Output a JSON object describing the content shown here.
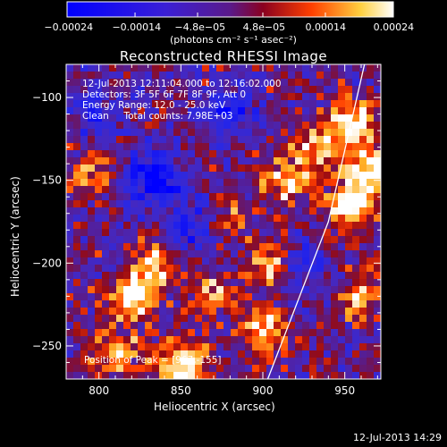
{
  "chart_data": {
    "type": "heatmap",
    "title": "Reconstructed RHESSI Image",
    "xlabel": "Heliocentric X (arcsec)",
    "ylabel": "Heliocentric Y (arcsec)",
    "xlim": [
      780,
      972
    ],
    "ylim": [
      -270,
      -80
    ],
    "x_ticks": [
      800,
      850,
      900,
      950
    ],
    "y_ticks": [
      -100,
      -150,
      -200,
      -250
    ],
    "colorbar": {
      "range": [
        -0.00024,
        0.00024
      ],
      "tick_labels": [
        "−0.00024",
        "−0.00014",
        "−4.8e−05",
        "4.8e−05",
        "0.00014",
        "0.00024"
      ],
      "tick_values": [
        -0.00024,
        -0.00014,
        -4.8e-05,
        4.8e-05,
        0.00014,
        0.00024
      ],
      "unit_label": "(photons cm⁻² s⁻¹ asec⁻²)"
    },
    "annotations": {
      "time_range": "12-Jul-2013 12:11:04.000 to 12:16:02.000",
      "detectors": "Detectors: 3F 5F 6F 7F 8F 9F, Att 0",
      "energy": "Energy Range: 12.0 - 25.0 keV",
      "clean": "Clean     Total counts: 7.98E+03",
      "peak": "Position of Peak = [967,-155]"
    },
    "peak_position": [
      967,
      -155
    ],
    "limb_line": [
      [
        903,
        -270
      ],
      [
        940,
        -175
      ],
      [
        962,
        -80
      ]
    ],
    "hot_regions": [
      {
        "x": 953,
        "y": -165,
        "strength": 1.0
      },
      {
        "x": 965,
        "y": -145,
        "strength": 0.9
      },
      {
        "x": 955,
        "y": -115,
        "strength": 0.85
      },
      {
        "x": 935,
        "y": -130,
        "strength": 0.7
      },
      {
        "x": 820,
        "y": -220,
        "strength": 0.9
      },
      {
        "x": 835,
        "y": -200,
        "strength": 0.75
      },
      {
        "x": 850,
        "y": -262,
        "strength": 0.95
      },
      {
        "x": 810,
        "y": -255,
        "strength": 0.7
      },
      {
        "x": 900,
        "y": -240,
        "strength": 0.75
      },
      {
        "x": 915,
        "y": -150,
        "strength": 0.7
      },
      {
        "x": 905,
        "y": -200,
        "strength": 0.6
      },
      {
        "x": 795,
        "y": -145,
        "strength": 0.6
      },
      {
        "x": 870,
        "y": -215,
        "strength": 0.55
      },
      {
        "x": 880,
        "y": -175,
        "strength": 0.5
      },
      {
        "x": 960,
        "y": -220,
        "strength": 0.6
      }
    ],
    "cold_regions": [
      {
        "x": 835,
        "y": -150,
        "strength": 1.0
      },
      {
        "x": 880,
        "y": -110,
        "strength": 0.6
      },
      {
        "x": 860,
        "y": -180,
        "strength": 0.55
      },
      {
        "x": 925,
        "y": -205,
        "strength": 0.5
      },
      {
        "x": 800,
        "y": -110,
        "strength": 0.4
      }
    ]
  },
  "footer": {
    "date": "12-Jul-2013 14:29"
  }
}
